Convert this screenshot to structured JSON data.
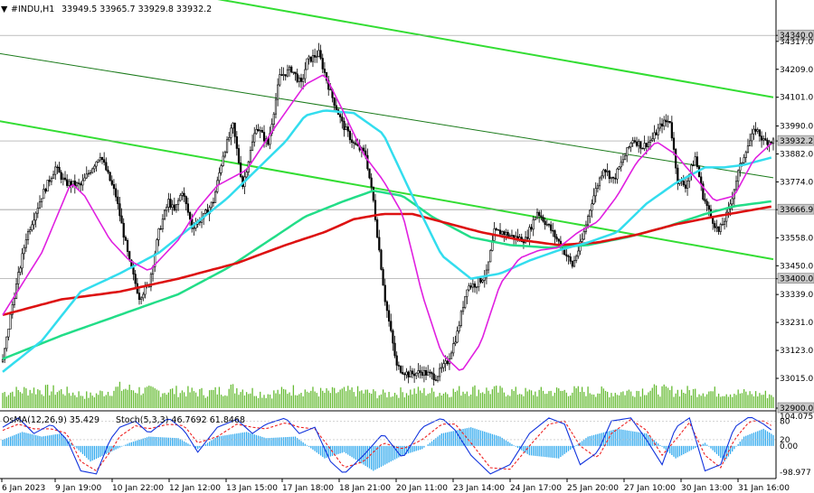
{
  "header": {
    "symbol": "#INDU,H1",
    "ohlc": "33949.5 33965.7 33929.8 33932.2",
    "indicator": "OsMA(12,26,9) 35.429",
    "stoch": "Stoch(5,3,3) 46.7692 61.8468"
  },
  "colors": {
    "candle": "#000000",
    "volume": "#66bb33",
    "ema_magenta": "#e020e0",
    "ema_cyan": "#33ddee",
    "ema_green": "#22dd88",
    "ema_red": "#dd1111",
    "channel": "#33dd33",
    "osma": "#33aaee",
    "stoch_main": "#1133dd",
    "stoch_signal": "#ee2222"
  },
  "chart_data": {
    "type": "candlestick",
    "ylim": [
      32900,
      34400
    ],
    "yticks": [
      "34340.0",
      "34317.0",
      "34209.0",
      "34101.0",
      "33990.0",
      "33932.2",
      "33882.0",
      "33774.0",
      "33666.9",
      "33558.0",
      "33450.0",
      "33400.0",
      "33339.0",
      "33231.0",
      "33123.0",
      "33015.0",
      "32900.0"
    ],
    "highlighted_levels": [
      "34340.0",
      "33932.2",
      "33666.9",
      "33400.0",
      "32900.0"
    ],
    "xticks": [
      "6 Jan 2023",
      "9 Jan 19:00",
      "10 Jan 22:00",
      "12 Jan 12:00",
      "13 Jan 15:00",
      "17 Jan 18:00",
      "18 Jan 21:00",
      "20 Jan 11:00",
      "23 Jan 14:00",
      "24 Jan 17:00",
      "25 Jan 20:00",
      "27 Jan 10:00",
      "30 Jan 13:00",
      "31 Jan 16:00"
    ],
    "price_anchor": [
      [
        0,
        33080
      ],
      [
        5,
        33300
      ],
      [
        12,
        33560
      ],
      [
        20,
        33720
      ],
      [
        27,
        33830
      ],
      [
        32,
        33770
      ],
      [
        40,
        33760
      ],
      [
        50,
        33880
      ],
      [
        58,
        33720
      ],
      [
        65,
        33460
      ],
      [
        70,
        33330
      ],
      [
        75,
        33380
      ],
      [
        80,
        33580
      ],
      [
        85,
        33700
      ],
      [
        88,
        33660
      ],
      [
        92,
        33740
      ],
      [
        97,
        33600
      ],
      [
        103,
        33640
      ],
      [
        108,
        33700
      ],
      [
        113,
        33880
      ],
      [
        118,
        33990
      ],
      [
        123,
        33760
      ],
      [
        130,
        33990
      ],
      [
        136,
        33920
      ],
      [
        142,
        34180
      ],
      [
        148,
        34210
      ],
      [
        153,
        34150
      ],
      [
        156,
        34240
      ],
      [
        162,
        34270
      ],
      [
        168,
        34120
      ],
      [
        174,
        34000
      ],
      [
        180,
        33920
      ],
      [
        186,
        33880
      ],
      [
        190,
        33700
      ],
      [
        196,
        33320
      ],
      [
        202,
        33060
      ],
      [
        208,
        33030
      ],
      [
        215,
        33040
      ],
      [
        222,
        33020
      ],
      [
        228,
        33080
      ],
      [
        233,
        33190
      ],
      [
        238,
        33370
      ],
      [
        243,
        33380
      ],
      [
        248,
        33420
      ],
      [
        252,
        33580
      ],
      [
        256,
        33580
      ],
      [
        262,
        33560
      ],
      [
        268,
        33550
      ],
      [
        274,
        33660
      ],
      [
        280,
        33600
      ],
      [
        286,
        33530
      ],
      [
        292,
        33450
      ],
      [
        297,
        33550
      ],
      [
        302,
        33700
      ],
      [
        308,
        33830
      ],
      [
        313,
        33780
      ],
      [
        318,
        33860
      ],
      [
        323,
        33940
      ],
      [
        328,
        33910
      ],
      [
        333,
        33940
      ],
      [
        338,
        34000
      ],
      [
        342,
        34010
      ],
      [
        346,
        33780
      ],
      [
        350,
        33760
      ],
      [
        355,
        33870
      ],
      [
        359,
        33720
      ],
      [
        363,
        33640
      ],
      [
        367,
        33580
      ],
      [
        372,
        33660
      ],
      [
        377,
        33810
      ],
      [
        381,
        33900
      ],
      [
        386,
        33980
      ],
      [
        390,
        33932
      ]
    ],
    "ema_magenta": [
      [
        0,
        33260
      ],
      [
        20,
        33500
      ],
      [
        35,
        33770
      ],
      [
        42,
        33720
      ],
      [
        55,
        33550
      ],
      [
        65,
        33470
      ],
      [
        75,
        33430
      ],
      [
        90,
        33550
      ],
      [
        100,
        33670
      ],
      [
        110,
        33760
      ],
      [
        125,
        33820
      ],
      [
        140,
        33990
      ],
      [
        155,
        34150
      ],
      [
        165,
        34190
      ],
      [
        175,
        34040
      ],
      [
        185,
        33880
      ],
      [
        195,
        33780
      ],
      [
        205,
        33650
      ],
      [
        215,
        33340
      ],
      [
        225,
        33110
      ],
      [
        235,
        33040
      ],
      [
        245,
        33150
      ],
      [
        255,
        33380
      ],
      [
        265,
        33480
      ],
      [
        275,
        33510
      ],
      [
        285,
        33520
      ],
      [
        295,
        33580
      ],
      [
        305,
        33620
      ],
      [
        315,
        33720
      ],
      [
        325,
        33850
      ],
      [
        335,
        33930
      ],
      [
        345,
        33880
      ],
      [
        355,
        33790
      ],
      [
        365,
        33700
      ],
      [
        375,
        33720
      ],
      [
        385,
        33860
      ],
      [
        395,
        33930
      ]
    ],
    "ema_cyan": [
      [
        0,
        33040
      ],
      [
        20,
        33160
      ],
      [
        40,
        33350
      ],
      [
        60,
        33420
      ],
      [
        80,
        33500
      ],
      [
        100,
        33620
      ],
      [
        115,
        33710
      ],
      [
        130,
        33820
      ],
      [
        145,
        33930
      ],
      [
        155,
        34030
      ],
      [
        165,
        34050
      ],
      [
        180,
        34040
      ],
      [
        195,
        33960
      ],
      [
        210,
        33720
      ],
      [
        225,
        33490
      ],
      [
        240,
        33400
      ],
      [
        255,
        33420
      ],
      [
        270,
        33470
      ],
      [
        285,
        33510
      ],
      [
        300,
        33540
      ],
      [
        315,
        33580
      ],
      [
        330,
        33690
      ],
      [
        345,
        33770
      ],
      [
        360,
        33830
      ],
      [
        370,
        33830
      ],
      [
        380,
        33840
      ],
      [
        395,
        33870
      ]
    ],
    "ema_green": [
      [
        0,
        33090
      ],
      [
        30,
        33180
      ],
      [
        60,
        33260
      ],
      [
        90,
        33340
      ],
      [
        115,
        33440
      ],
      [
        135,
        33540
      ],
      [
        155,
        33640
      ],
      [
        175,
        33700
      ],
      [
        190,
        33740
      ],
      [
        205,
        33720
      ],
      [
        220,
        33640
      ],
      [
        240,
        33560
      ],
      [
        260,
        33530
      ],
      [
        280,
        33520
      ],
      [
        300,
        33530
      ],
      [
        320,
        33560
      ],
      [
        340,
        33600
      ],
      [
        360,
        33650
      ],
      [
        375,
        33680
      ],
      [
        395,
        33700
      ]
    ],
    "ema_red": [
      [
        0,
        33260
      ],
      [
        30,
        33320
      ],
      [
        60,
        33350
      ],
      [
        90,
        33400
      ],
      [
        120,
        33460
      ],
      [
        145,
        33530
      ],
      [
        165,
        33580
      ],
      [
        180,
        33630
      ],
      [
        195,
        33650
      ],
      [
        210,
        33650
      ],
      [
        225,
        33620
      ],
      [
        245,
        33580
      ],
      [
        265,
        33550
      ],
      [
        285,
        33530
      ],
      [
        305,
        33540
      ],
      [
        325,
        33570
      ],
      [
        345,
        33610
      ],
      [
        365,
        33640
      ],
      [
        380,
        33660
      ],
      [
        395,
        33680
      ]
    ],
    "channel_upper": [
      [
        -10,
        34640
      ],
      [
        395,
        34101
      ]
    ],
    "channel_lower": [
      [
        -10,
        34020
      ],
      [
        395,
        33475
      ]
    ],
    "channel_mid": [
      [
        -10,
        34280
      ],
      [
        395,
        33790
      ]
    ],
    "horizontal_line": 33666.9,
    "volume_anchor": [
      [
        0,
        0.5
      ],
      [
        15,
        0.6
      ],
      [
        30,
        0.55
      ],
      [
        45,
        0.4
      ],
      [
        60,
        0.65
      ],
      [
        75,
        0.55
      ],
      [
        90,
        0.55
      ],
      [
        105,
        0.5
      ],
      [
        120,
        0.65
      ],
      [
        135,
        0.45
      ],
      [
        150,
        0.6
      ],
      [
        165,
        0.5
      ],
      [
        180,
        0.55
      ],
      [
        195,
        0.45
      ],
      [
        210,
        0.55
      ],
      [
        225,
        0.5
      ],
      [
        240,
        0.6
      ],
      [
        255,
        0.55
      ],
      [
        270,
        0.5
      ],
      [
        285,
        0.55
      ],
      [
        300,
        0.55
      ],
      [
        315,
        0.5
      ],
      [
        330,
        0.6
      ],
      [
        345,
        0.55
      ],
      [
        360,
        0.55
      ],
      [
        375,
        0.5
      ],
      [
        390,
        0.45
      ]
    ],
    "osc_ylim": [
      -98.977,
      104.075
    ],
    "osc_labels": [
      "104.075",
      "80",
      "0.00",
      "20",
      "-98.977"
    ],
    "osma_anchor": [
      [
        0,
        20
      ],
      [
        10,
        45
      ],
      [
        20,
        30
      ],
      [
        30,
        40
      ],
      [
        45,
        -50
      ],
      [
        55,
        -20
      ],
      [
        65,
        10
      ],
      [
        75,
        30
      ],
      [
        90,
        25
      ],
      [
        100,
        -10
      ],
      [
        110,
        30
      ],
      [
        125,
        45
      ],
      [
        135,
        25
      ],
      [
        150,
        30
      ],
      [
        165,
        -40
      ],
      [
        175,
        -20
      ],
      [
        190,
        -80
      ],
      [
        205,
        -30
      ],
      [
        215,
        -10
      ],
      [
        225,
        40
      ],
      [
        240,
        60
      ],
      [
        255,
        30
      ],
      [
        270,
        -30
      ],
      [
        285,
        -40
      ],
      [
        300,
        30
      ],
      [
        315,
        55
      ],
      [
        330,
        40
      ],
      [
        345,
        -40
      ],
      [
        360,
        10
      ],
      [
        370,
        -50
      ],
      [
        380,
        30
      ],
      [
        390,
        55
      ],
      [
        395,
        35
      ]
    ],
    "stoch_main_anchor": [
      [
        0,
        60
      ],
      [
        8,
        90
      ],
      [
        16,
        40
      ],
      [
        25,
        70
      ],
      [
        33,
        20
      ],
      [
        40,
        -80
      ],
      [
        48,
        -90
      ],
      [
        55,
        20
      ],
      [
        60,
        60
      ],
      [
        68,
        80
      ],
      [
        75,
        40
      ],
      [
        85,
        90
      ],
      [
        93,
        50
      ],
      [
        100,
        -20
      ],
      [
        110,
        60
      ],
      [
        120,
        85
      ],
      [
        128,
        40
      ],
      [
        135,
        70
      ],
      [
        145,
        90
      ],
      [
        152,
        40
      ],
      [
        160,
        60
      ],
      [
        168,
        -50
      ],
      [
        175,
        -90
      ],
      [
        185,
        -30
      ],
      [
        195,
        40
      ],
      [
        205,
        -40
      ],
      [
        215,
        60
      ],
      [
        225,
        90
      ],
      [
        232,
        50
      ],
      [
        240,
        -30
      ],
      [
        250,
        -90
      ],
      [
        260,
        -60
      ],
      [
        270,
        40
      ],
      [
        280,
        90
      ],
      [
        288,
        70
      ],
      [
        296,
        -60
      ],
      [
        305,
        -20
      ],
      [
        312,
        80
      ],
      [
        322,
        90
      ],
      [
        330,
        20
      ],
      [
        338,
        -60
      ],
      [
        345,
        60
      ],
      [
        352,
        90
      ],
      [
        360,
        -80
      ],
      [
        368,
        -60
      ],
      [
        375,
        60
      ],
      [
        383,
        95
      ],
      [
        390,
        70
      ],
      [
        395,
        47
      ]
    ],
    "stoch_signal_anchor": [
      [
        0,
        50
      ],
      [
        8,
        70
      ],
      [
        16,
        55
      ],
      [
        25,
        55
      ],
      [
        33,
        40
      ],
      [
        40,
        -50
      ],
      [
        48,
        -80
      ],
      [
        55,
        -20
      ],
      [
        60,
        30
      ],
      [
        68,
        65
      ],
      [
        75,
        55
      ],
      [
        85,
        70
      ],
      [
        93,
        65
      ],
      [
        100,
        10
      ],
      [
        110,
        30
      ],
      [
        120,
        70
      ],
      [
        128,
        60
      ],
      [
        135,
        55
      ],
      [
        145,
        75
      ],
      [
        152,
        60
      ],
      [
        160,
        55
      ],
      [
        168,
        -10
      ],
      [
        175,
        -70
      ],
      [
        185,
        -50
      ],
      [
        195,
        10
      ],
      [
        205,
        -10
      ],
      [
        215,
        20
      ],
      [
        225,
        70
      ],
      [
        232,
        70
      ],
      [
        240,
        10
      ],
      [
        250,
        -70
      ],
      [
        260,
        -75
      ],
      [
        270,
        0
      ],
      [
        280,
        70
      ],
      [
        288,
        80
      ],
      [
        296,
        0
      ],
      [
        305,
        -40
      ],
      [
        312,
        40
      ],
      [
        322,
        85
      ],
      [
        330,
        50
      ],
      [
        338,
        -30
      ],
      [
        345,
        20
      ],
      [
        352,
        75
      ],
      [
        360,
        -30
      ],
      [
        368,
        -70
      ],
      [
        375,
        20
      ],
      [
        383,
        80
      ],
      [
        390,
        80
      ],
      [
        395,
        62
      ]
    ]
  }
}
